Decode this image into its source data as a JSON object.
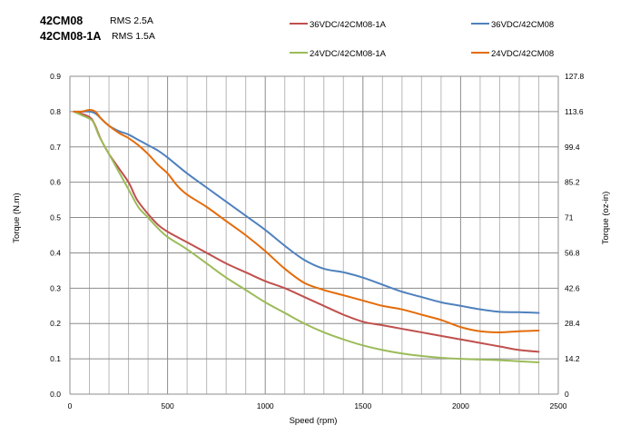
{
  "header": {
    "motors": [
      {
        "name": "42CM08",
        "rms": "RMS 2.5A"
      },
      {
        "name": "42CM08-1A",
        "rms": "RMS 1.5A"
      }
    ]
  },
  "chart_data": {
    "type": "line",
    "title": "",
    "xlabel": "Speed (rpm)",
    "ylabel": "Torque (N.m)",
    "y2label": "Torque (oz-in)",
    "xlim": [
      0,
      2500
    ],
    "ylim": [
      0,
      0.9
    ],
    "y2lim": [
      0,
      127.8
    ],
    "x_ticks": [
      "0",
      "500",
      "1000",
      "1500",
      "2000",
      "2500"
    ],
    "y_ticks": [
      "0.0",
      "0.1",
      "0.2",
      "0.3",
      "0.4",
      "0.5",
      "0.6",
      "0.7",
      "0.8",
      "0.9"
    ],
    "y2_ticks": [
      "0",
      "14.2",
      "28.4",
      "42.6",
      "56.8",
      "71",
      "85.2",
      "99.4",
      "113.6",
      "127.8"
    ],
    "grid": true,
    "legend": "top",
    "series": [
      {
        "name": "36VDC/42CM08-1A",
        "color": "#C0504D",
        "x": [
          20,
          80,
          110,
          130,
          160,
          200,
          250,
          300,
          330,
          350,
          400,
          450,
          500,
          600,
          700,
          800,
          900,
          1000,
          1100,
          1200,
          1300,
          1400,
          1500,
          1600,
          1700,
          1800,
          1900,
          2000,
          2100,
          2200,
          2300,
          2400
        ],
        "y": [
          0.8,
          0.79,
          0.78,
          0.76,
          0.72,
          0.68,
          0.64,
          0.6,
          0.565,
          0.545,
          0.51,
          0.48,
          0.46,
          0.43,
          0.4,
          0.37,
          0.345,
          0.32,
          0.3,
          0.275,
          0.25,
          0.225,
          0.205,
          0.195,
          0.185,
          0.175,
          0.165,
          0.155,
          0.145,
          0.135,
          0.125,
          0.12
        ]
      },
      {
        "name": "36VDC/42CM08",
        "color": "#4F81BD",
        "x": [
          20,
          60,
          100,
          130,
          160,
          200,
          250,
          300,
          350,
          400,
          450,
          500,
          600,
          700,
          800,
          900,
          1000,
          1100,
          1200,
          1300,
          1400,
          1500,
          1600,
          1700,
          1800,
          1900,
          2000,
          2100,
          2200,
          2300,
          2400
        ],
        "y": [
          0.8,
          0.8,
          0.8,
          0.795,
          0.78,
          0.76,
          0.745,
          0.735,
          0.72,
          0.705,
          0.69,
          0.67,
          0.625,
          0.585,
          0.545,
          0.505,
          0.465,
          0.42,
          0.38,
          0.355,
          0.345,
          0.33,
          0.31,
          0.29,
          0.275,
          0.26,
          0.25,
          0.24,
          0.233,
          0.232,
          0.23
        ]
      },
      {
        "name": "24VDC/42CM08-1A",
        "color": "#9BBB59",
        "x": [
          20,
          60,
          100,
          120,
          150,
          180,
          210,
          250,
          300,
          350,
          400,
          450,
          500,
          600,
          700,
          800,
          900,
          1000,
          1100,
          1200,
          1300,
          1400,
          1500,
          1600,
          1700,
          1800,
          1900,
          2000,
          2100,
          2200,
          2300,
          2400
        ],
        "y": [
          0.8,
          0.79,
          0.78,
          0.77,
          0.73,
          0.7,
          0.67,
          0.63,
          0.58,
          0.53,
          0.5,
          0.47,
          0.445,
          0.41,
          0.37,
          0.33,
          0.295,
          0.26,
          0.23,
          0.2,
          0.175,
          0.155,
          0.138,
          0.125,
          0.115,
          0.108,
          0.103,
          0.1,
          0.098,
          0.096,
          0.093,
          0.09
        ]
      },
      {
        "name": "24VDC/42CM08",
        "color": "#E46C0A",
        "x": [
          20,
          60,
          100,
          130,
          160,
          200,
          250,
          300,
          350,
          400,
          450,
          500,
          550,
          600,
          700,
          800,
          900,
          1000,
          1100,
          1200,
          1300,
          1400,
          1500,
          1600,
          1700,
          1800,
          1900,
          2000,
          2100,
          2200,
          2300,
          2400
        ],
        "y": [
          0.8,
          0.8,
          0.805,
          0.8,
          0.78,
          0.76,
          0.74,
          0.725,
          0.705,
          0.68,
          0.65,
          0.625,
          0.59,
          0.565,
          0.53,
          0.49,
          0.45,
          0.405,
          0.355,
          0.315,
          0.295,
          0.28,
          0.265,
          0.25,
          0.24,
          0.225,
          0.21,
          0.19,
          0.178,
          0.175,
          0.178,
          0.18
        ]
      }
    ]
  }
}
